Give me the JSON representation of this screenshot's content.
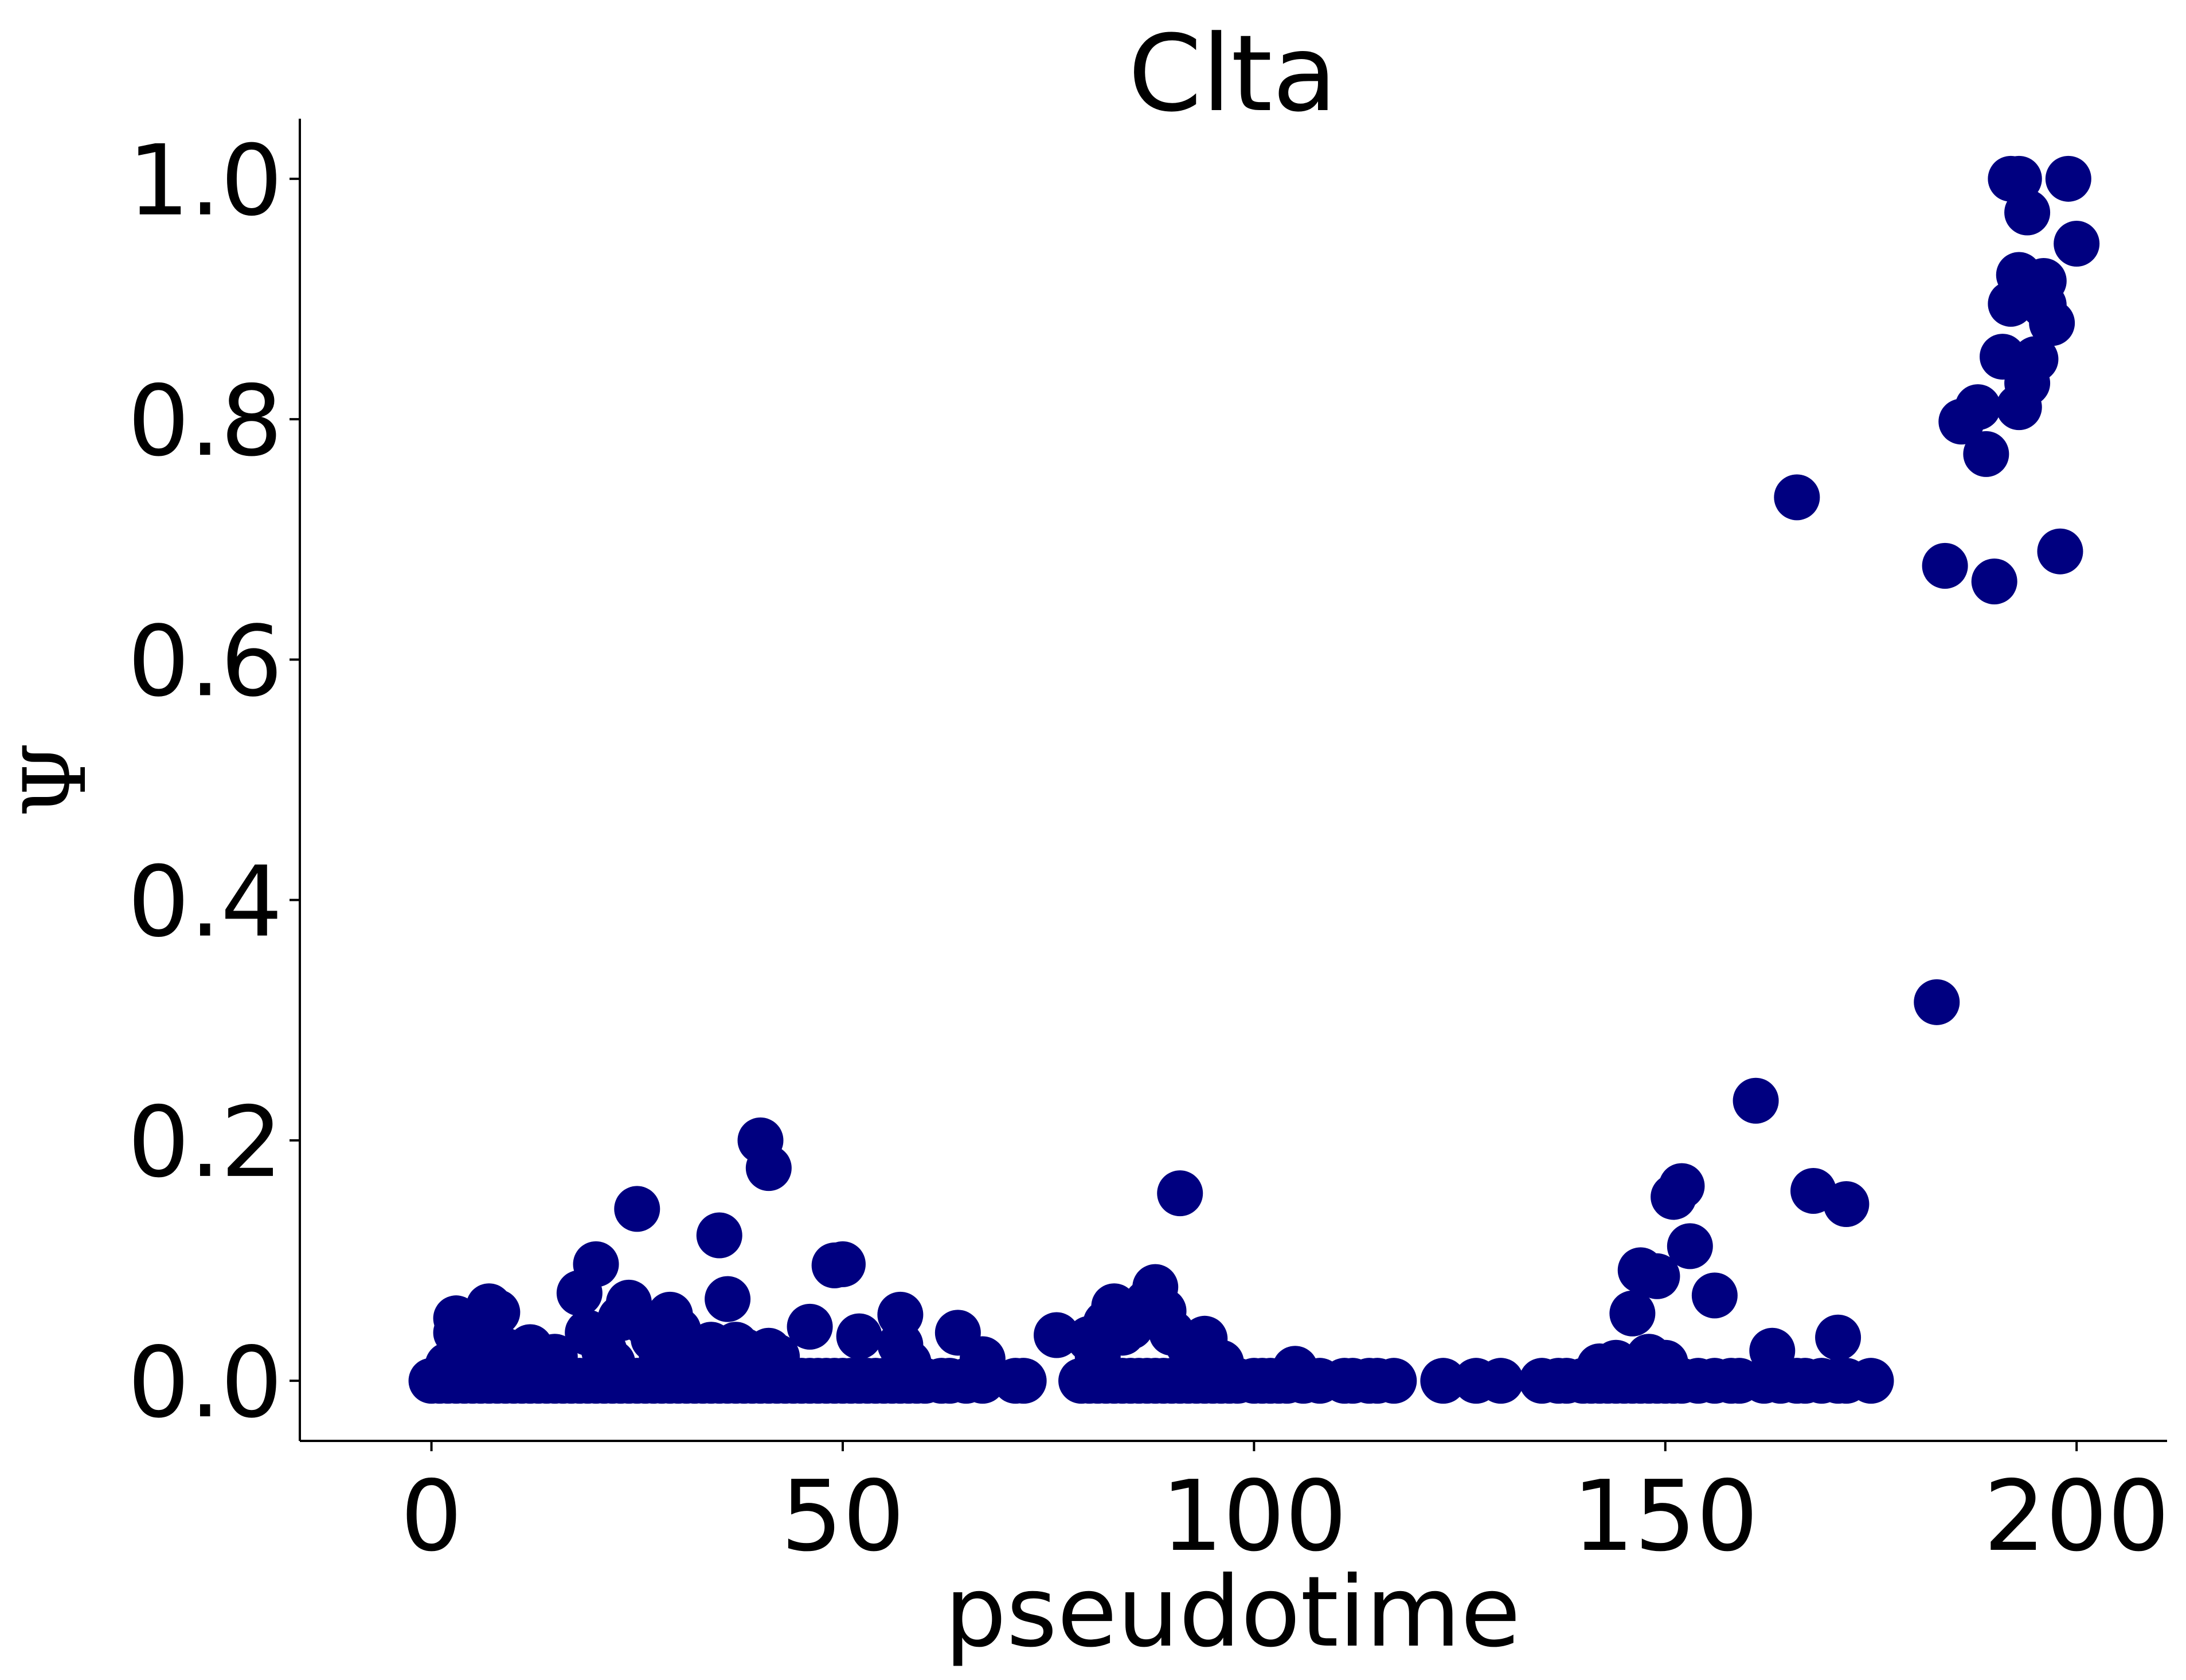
{
  "chart_data": {
    "type": "scatter",
    "title": "Clta",
    "xlabel": "pseudotime",
    "ylabel": "Ψ",
    "xlim": [
      -16,
      211
    ],
    "ylim": [
      -0.05,
      1.05
    ],
    "xticks": [
      0,
      50,
      100,
      150,
      200
    ],
    "yticks": [
      0.0,
      0.2,
      0.4,
      0.6,
      0.8,
      1.0
    ],
    "xtick_labels": [
      "0",
      "50",
      "100",
      "150",
      "200"
    ],
    "ytick_labels": [
      "0.0",
      "0.2",
      "0.4",
      "0.6",
      "0.8",
      "1.0"
    ],
    "grid": false,
    "legend": "none",
    "marker_color": "#000080",
    "series": [
      {
        "points": [
          [
            0,
            0
          ],
          [
            1,
            0
          ],
          [
            2,
            0
          ],
          [
            3,
            0
          ],
          [
            4,
            0
          ],
          [
            5,
            0
          ],
          [
            6,
            0
          ],
          [
            7,
            0
          ],
          [
            8,
            0
          ],
          [
            9,
            0
          ],
          [
            10,
            0
          ],
          [
            11,
            0
          ],
          [
            12,
            0
          ],
          [
            13,
            0
          ],
          [
            14,
            0
          ],
          [
            15,
            0
          ],
          [
            16,
            0
          ],
          [
            17,
            0
          ],
          [
            18,
            0
          ],
          [
            19,
            0
          ],
          [
            20,
            0
          ],
          [
            21,
            0
          ],
          [
            22,
            0
          ],
          [
            23,
            0
          ],
          [
            24,
            0
          ],
          [
            25,
            0
          ],
          [
            26,
            0
          ],
          [
            27,
            0
          ],
          [
            28,
            0
          ],
          [
            29,
            0
          ],
          [
            30,
            0
          ],
          [
            31,
            0
          ],
          [
            32,
            0
          ],
          [
            33,
            0
          ],
          [
            34,
            0
          ],
          [
            35,
            0
          ],
          [
            36,
            0
          ],
          [
            37,
            0
          ],
          [
            38,
            0
          ],
          [
            39,
            0
          ],
          [
            40,
            0
          ],
          [
            41,
            0
          ],
          [
            42,
            0
          ],
          [
            43,
            0
          ],
          [
            44,
            0
          ],
          [
            45,
            0
          ],
          [
            46,
            0
          ],
          [
            47,
            0
          ],
          [
            48,
            0
          ],
          [
            49,
            0
          ],
          [
            50,
            0
          ],
          [
            51,
            0
          ],
          [
            52,
            0
          ],
          [
            53,
            0
          ],
          [
            54,
            0
          ],
          [
            55,
            0
          ],
          [
            56,
            0
          ],
          [
            57,
            0
          ],
          [
            58,
            0
          ],
          [
            59,
            0
          ],
          [
            60,
            0
          ],
          [
            62,
            0
          ],
          [
            63,
            0
          ],
          [
            65,
            0
          ],
          [
            67,
            0
          ],
          [
            71,
            0
          ],
          [
            72,
            0
          ],
          [
            79,
            0
          ],
          [
            80,
            0
          ],
          [
            81,
            0
          ],
          [
            82,
            0
          ],
          [
            83,
            0
          ],
          [
            84,
            0
          ],
          [
            85,
            0
          ],
          [
            86,
            0
          ],
          [
            87,
            0
          ],
          [
            88,
            0
          ],
          [
            89,
            0
          ],
          [
            90,
            0
          ],
          [
            91,
            0
          ],
          [
            92,
            0
          ],
          [
            93,
            0
          ],
          [
            94,
            0
          ],
          [
            95,
            0
          ],
          [
            96,
            0
          ],
          [
            97,
            0
          ],
          [
            98,
            0
          ],
          [
            100,
            0
          ],
          [
            101,
            0
          ],
          [
            102,
            0
          ],
          [
            103,
            0
          ],
          [
            104,
            0
          ],
          [
            106,
            0
          ],
          [
            108,
            0
          ],
          [
            111,
            0
          ],
          [
            112,
            0
          ],
          [
            114,
            0
          ],
          [
            115,
            0
          ],
          [
            117,
            0
          ],
          [
            123,
            0
          ],
          [
            127,
            0
          ],
          [
            130,
            0
          ],
          [
            135,
            0
          ],
          [
            137,
            0
          ],
          [
            138,
            0
          ],
          [
            140,
            0
          ],
          [
            141,
            0
          ],
          [
            142,
            0
          ],
          [
            143,
            0
          ],
          [
            144,
            0
          ],
          [
            145,
            0
          ],
          [
            146,
            0
          ],
          [
            147,
            0
          ],
          [
            148,
            0
          ],
          [
            149,
            0
          ],
          [
            150,
            0
          ],
          [
            151,
            0
          ],
          [
            152,
            0
          ],
          [
            154,
            0
          ],
          [
            156,
            0
          ],
          [
            158,
            0
          ],
          [
            159,
            0
          ],
          [
            162,
            0
          ],
          [
            164,
            0
          ],
          [
            166,
            0
          ],
          [
            167,
            0
          ],
          [
            169,
            0
          ],
          [
            171,
            0
          ],
          [
            172,
            0
          ],
          [
            175,
            0
          ],
          [
            2,
            0.013
          ],
          [
            3,
            0.04
          ],
          [
            3,
            0.052
          ],
          [
            4,
            0.02
          ],
          [
            5,
            0.045
          ],
          [
            6,
            0.01
          ],
          [
            7,
            0.062
          ],
          [
            8,
            0.057
          ],
          [
            9,
            0.025
          ],
          [
            10,
            0.015
          ],
          [
            12,
            0.028
          ],
          [
            14,
            0.012
          ],
          [
            15,
            0.02
          ],
          [
            18,
            0.073
          ],
          [
            19,
            0.04
          ],
          [
            20,
            0.097
          ],
          [
            21,
            0.025
          ],
          [
            22,
            0.015
          ],
          [
            23,
            0.052
          ],
          [
            24,
            0.065
          ],
          [
            25,
            0.143
          ],
          [
            26,
            0.048
          ],
          [
            27,
            0.035
          ],
          [
            28,
            0.02
          ],
          [
            29,
            0.055
          ],
          [
            30,
            0.042
          ],
          [
            31,
            0.018
          ],
          [
            33,
            0.025
          ],
          [
            34,
            0.03
          ],
          [
            35,
            0.121
          ],
          [
            36,
            0.068
          ],
          [
            37,
            0.03
          ],
          [
            38,
            0.025
          ],
          [
            39,
            0.015
          ],
          [
            40,
            0.2
          ],
          [
            41,
            0.177
          ],
          [
            41,
            0.025
          ],
          [
            42,
            0.02
          ],
          [
            46,
            0.045
          ],
          [
            49,
            0.096
          ],
          [
            50,
            0.097
          ],
          [
            52,
            0.037
          ],
          [
            57,
            0.055
          ],
          [
            57,
            0.03
          ],
          [
            58,
            0.015
          ],
          [
            64,
            0.04
          ],
          [
            67,
            0.018
          ],
          [
            76,
            0.038
          ],
          [
            80,
            0.035
          ],
          [
            81,
            0.02
          ],
          [
            82,
            0.048
          ],
          [
            83,
            0.062
          ],
          [
            84,
            0.04
          ],
          [
            85,
            0.045
          ],
          [
            86,
            0.058
          ],
          [
            87,
            0.065
          ],
          [
            88,
            0.078
          ],
          [
            89,
            0.058
          ],
          [
            90,
            0.04
          ],
          [
            91,
            0.156
          ],
          [
            92,
            0.03
          ],
          [
            93,
            0.015
          ],
          [
            94,
            0.035
          ],
          [
            96,
            0.015
          ],
          [
            105,
            0.01
          ],
          [
            142,
            0.012
          ],
          [
            144,
            0.015
          ],
          [
            146,
            0.056
          ],
          [
            147,
            0.092
          ],
          [
            148,
            0.02
          ],
          [
            149,
            0.087
          ],
          [
            150,
            0.015
          ],
          [
            151,
            0.153
          ],
          [
            152,
            0.162
          ],
          [
            153,
            0.112
          ],
          [
            156,
            0.071
          ],
          [
            161,
            0.233
          ],
          [
            163,
            0.025
          ],
          [
            166,
            0.735
          ],
          [
            168,
            0.158
          ],
          [
            171,
            0.036
          ],
          [
            172,
            0.147
          ],
          [
            183,
            0.315
          ],
          [
            184,
            0.678
          ],
          [
            186,
            0.798
          ],
          [
            188,
            0.81
          ],
          [
            189,
            0.771
          ],
          [
            190,
            0.665
          ],
          [
            191,
            0.852
          ],
          [
            192,
            1.0
          ],
          [
            192,
            0.896
          ],
          [
            193,
            1.0
          ],
          [
            193,
            0.92
          ],
          [
            193,
            0.81
          ],
          [
            194,
            0.972
          ],
          [
            194,
            0.83
          ],
          [
            195,
            0.85
          ],
          [
            196,
            0.915
          ],
          [
            196,
            0.895
          ],
          [
            197,
            0.88
          ],
          [
            198,
            0.69
          ],
          [
            199,
            1.0
          ],
          [
            200,
            0.946
          ]
        ]
      }
    ]
  }
}
